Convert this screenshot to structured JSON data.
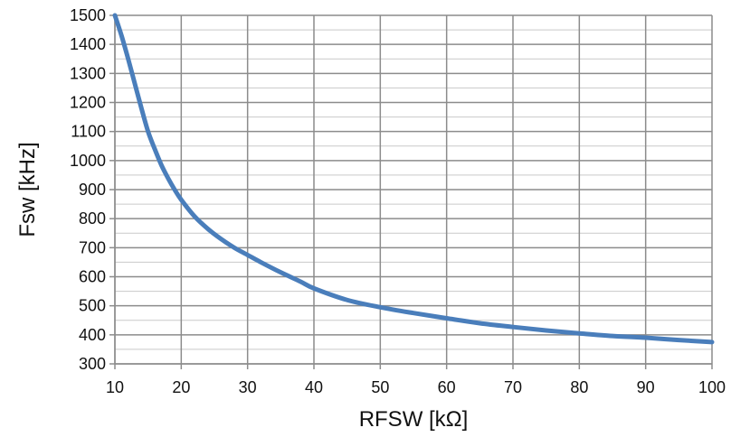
{
  "chart_data": {
    "type": "line",
    "title": "",
    "xlabel": "RFSW [kΩ]",
    "ylabel": "Fsw [kHz]",
    "xlim": [
      10,
      100
    ],
    "ylim": [
      300,
      1500
    ],
    "x_ticks": [
      10,
      20,
      30,
      40,
      50,
      60,
      70,
      80,
      90,
      100
    ],
    "y_ticks": [
      300,
      400,
      500,
      600,
      700,
      800,
      900,
      1000,
      1100,
      1200,
      1300,
      1400,
      1500
    ],
    "x_tick_labels": [
      "10",
      "20",
      "30",
      "40",
      "50",
      "60",
      "70",
      "80",
      "90",
      "100"
    ],
    "y_tick_labels": [
      "300",
      "400",
      "500",
      "600",
      "700",
      "800",
      "900",
      "1000",
      "1100",
      "1200",
      "1300",
      "1400",
      "1500"
    ],
    "grid": {
      "major_x": true,
      "major_y": true,
      "minor_y_step": 50
    },
    "legend": "none",
    "series": [
      {
        "color": "#4a7ebb",
        "x": [
          10,
          11,
          12,
          13,
          14,
          15,
          16,
          17,
          18,
          19,
          20,
          22,
          24,
          26,
          28,
          30,
          32,
          35,
          38,
          40,
          45,
          50,
          55,
          60,
          65,
          70,
          75,
          80,
          85,
          90,
          95,
          100
        ],
        "y": [
          1500,
          1430,
          1350,
          1265,
          1180,
          1100,
          1040,
          985,
          940,
          900,
          865,
          808,
          765,
          730,
          700,
          675,
          650,
          615,
          583,
          560,
          520,
          495,
          475,
          457,
          440,
          427,
          415,
          405,
          396,
          390,
          382,
          375
        ]
      }
    ]
  }
}
